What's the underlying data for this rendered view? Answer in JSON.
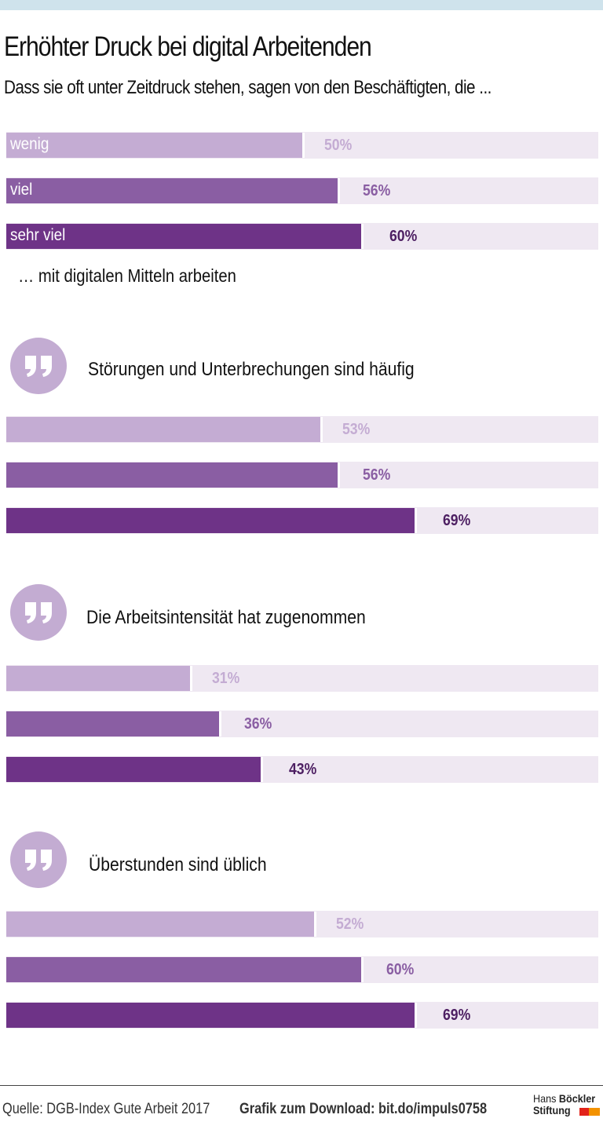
{
  "header": {
    "title": "Erhöhter Druck bei digital Arbeitenden",
    "subtitle": "Dass sie oft unter Zeitdruck stehen, sagen von den Beschäftigten, die ..."
  },
  "colors": {
    "wenig": "#c4acd3",
    "viel": "#8a5ea3",
    "sehr_viel": "#6e3387",
    "track": "#efe8f2",
    "label_wenig": "#c4acd3",
    "label_viel": "#8a5ea3",
    "label_sehr_viel": "#4d1f62",
    "quote_circle": "#c3acd2"
  },
  "legend_note": "… mit digitalen Mitteln arbeiten",
  "chart_data": {
    "type": "bar",
    "title": "Erhöhter Druck bei digital Arbeitenden",
    "subtitle": "Dass sie oft unter Zeitdruck stehen, sagen von den Beschäftigten, die ...",
    "categories": [
      "wenig",
      "viel",
      "sehr viel"
    ],
    "category_note": "… mit digitalen Mitteln arbeiten",
    "xlim": [
      0,
      100
    ],
    "unit": "%",
    "groups": [
      {
        "name": "Zeitdruck",
        "heading": "",
        "values": [
          50,
          56,
          60
        ],
        "labels": [
          "50%",
          "56%",
          "60%"
        ]
      },
      {
        "name": "Störungen",
        "heading": "Störungen und Unterbrechungen sind häufig",
        "values": [
          53,
          56,
          69
        ],
        "labels": [
          "53%",
          "56%",
          "69%"
        ]
      },
      {
        "name": "Arbeitsintensität",
        "heading": "Die Arbeitsintensität hat zugenommen",
        "values": [
          31,
          36,
          43
        ],
        "labels": [
          "31%",
          "36%",
          "43%"
        ]
      },
      {
        "name": "Überstunden",
        "heading": "Überstunden sind üblich",
        "values": [
          52,
          60,
          69
        ],
        "labels": [
          "52%",
          "60%",
          "69%"
        ]
      }
    ]
  },
  "footer": {
    "source": "Quelle: DGB-Index Gute Arbeit 2017",
    "download": "Grafik zum Download: bit.do/impuls0758",
    "logo_line1_a": "Hans",
    "logo_line1_b": "Böckler",
    "logo_line2": "Stiftung"
  },
  "icons": {
    "quote": "quote-icon"
  }
}
